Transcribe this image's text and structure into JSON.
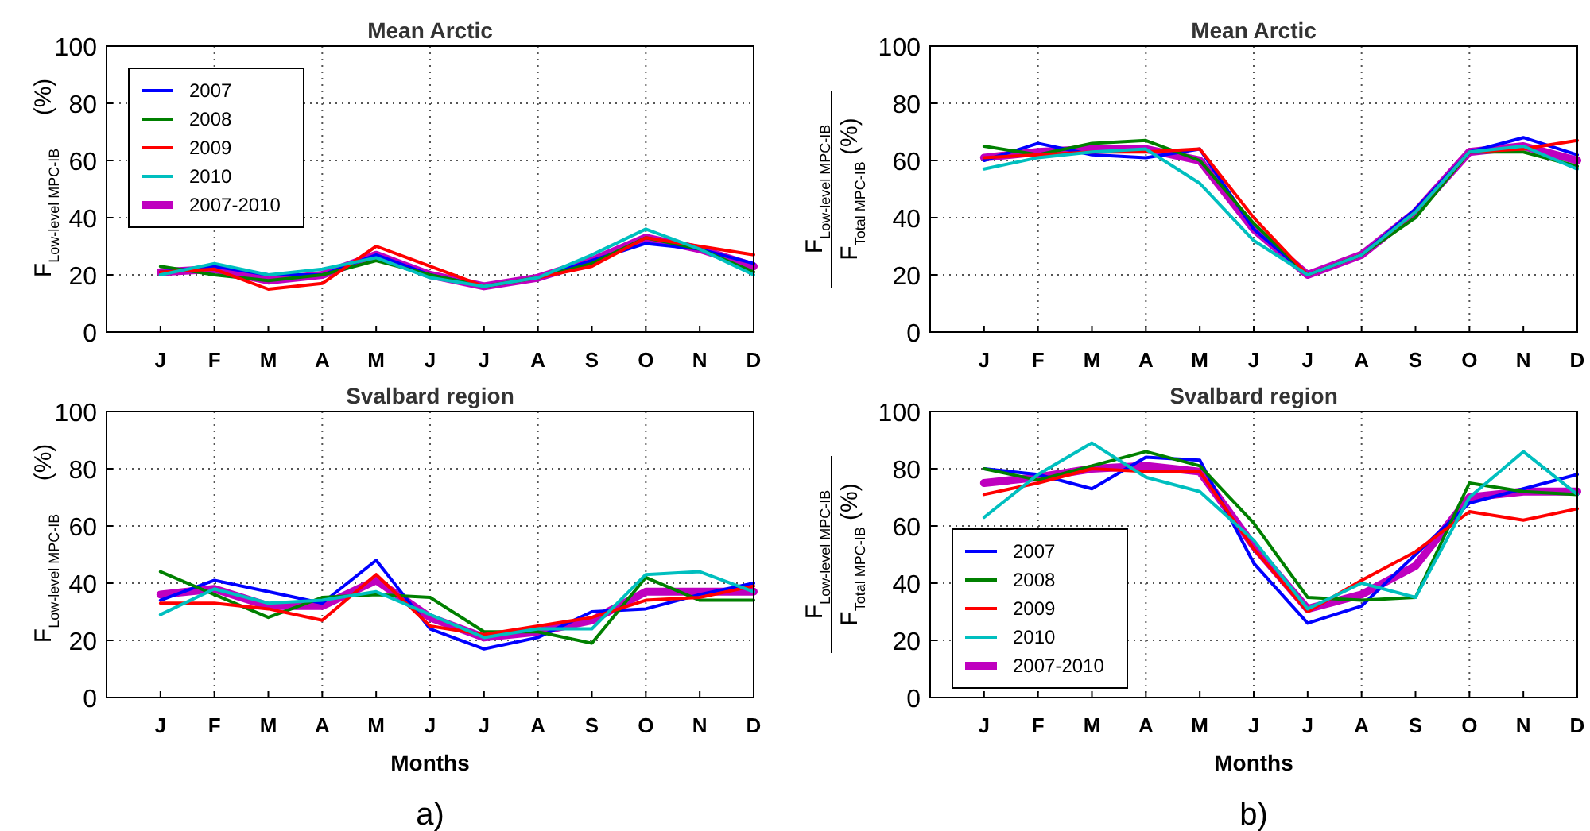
{
  "chart_data": [
    {
      "type": "line",
      "title": "Mean Arctic",
      "ylabel": "F$_{Low-level MPC-IB}$ (%)",
      "categories": [
        "J",
        "F",
        "M",
        "A",
        "M",
        "J",
        "J",
        "A",
        "S",
        "O",
        "N",
        "D"
      ],
      "ylim": [
        0,
        100
      ],
      "yticks": [
        0,
        20,
        40,
        60,
        80,
        100
      ],
      "grid": true,
      "legend": "top left",
      "line_style": "solid",
      "marker": "none",
      "series": [
        {
          "name": "2007",
          "color": "#0000ff",
          "values": [
            21,
            23,
            20,
            20,
            27,
            20,
            16,
            19,
            25,
            31,
            29,
            24
          ]
        },
        {
          "name": "2008",
          "color": "#008000",
          "values": [
            23,
            20,
            18,
            20,
            25,
            20,
            16,
            19,
            24,
            33,
            29,
            21
          ]
        },
        {
          "name": "2009",
          "color": "#ff0000",
          "values": [
            21,
            22,
            15,
            17,
            30,
            23,
            16,
            19,
            23,
            33,
            30,
            27
          ]
        },
        {
          "name": "2010",
          "color": "#00bfbf",
          "values": [
            20,
            24,
            20,
            22,
            26,
            19,
            16,
            19,
            27,
            36,
            29,
            20
          ]
        },
        {
          "name": "2007-2010",
          "color": "#bf00bf",
          "values": [
            21,
            22,
            18,
            20,
            27,
            20,
            16,
            19,
            25,
            33,
            29,
            23
          ]
        }
      ]
    },
    {
      "type": "line",
      "title": "Mean Arctic",
      "ylabel": "F$_{Low-level MPC-IB}$\nF$_{Total MPC-IB}$ (%)",
      "categories": [
        "J",
        "F",
        "M",
        "A",
        "M",
        "J",
        "J",
        "A",
        "S",
        "O",
        "N",
        "D"
      ],
      "ylim": [
        0,
        100
      ],
      "yticks": [
        0,
        20,
        40,
        60,
        80,
        100
      ],
      "grid": true,
      "legend": false,
      "line_style": "solid",
      "marker": "none",
      "series": [
        {
          "color": "#0000ff",
          "values": [
            60,
            66,
            62,
            61,
            64,
            36,
            20,
            27,
            43,
            63,
            68,
            62
          ]
        },
        {
          "color": "#008000",
          "values": [
            65,
            62,
            66,
            67,
            60,
            38,
            20,
            27,
            40,
            63,
            63,
            58
          ]
        },
        {
          "color": "#ff0000",
          "values": [
            61,
            62,
            63,
            63,
            64,
            40,
            20,
            27,
            42,
            63,
            64,
            67
          ]
        },
        {
          "color": "#00bfbf",
          "values": [
            57,
            61,
            63,
            64,
            52,
            32,
            20,
            27,
            42,
            63,
            65,
            57
          ]
        },
        {
          "color": "#bf00bf",
          "values": [
            61,
            63,
            64,
            64,
            60,
            36,
            20,
            27,
            42,
            63,
            65,
            60
          ]
        }
      ]
    },
    {
      "type": "line",
      "title": "Svalbard region",
      "xlabel": "Months",
      "ylabel": "F$_{Low-level MPC-IB}$ (%)",
      "annotations": [
        "a)"
      ],
      "categories": [
        "J",
        "F",
        "M",
        "A",
        "M",
        "J",
        "J",
        "A",
        "S",
        "O",
        "N",
        "D"
      ],
      "ylim": [
        0,
        100
      ],
      "yticks": [
        0,
        20,
        40,
        60,
        80,
        100
      ],
      "grid": true,
      "legend": false,
      "line_style": "solid",
      "marker": "none",
      "series": [
        {
          "color": "#0000ff",
          "values": [
            34,
            41,
            37,
            33,
            48,
            24,
            17,
            21,
            30,
            31,
            36,
            40
          ]
        },
        {
          "color": "#008000",
          "values": [
            44,
            36,
            28,
            35,
            36,
            35,
            23,
            23,
            19,
            42,
            34,
            34
          ]
        },
        {
          "color": "#ff0000",
          "values": [
            33,
            33,
            31,
            27,
            43,
            25,
            22,
            25,
            28,
            34,
            35,
            39
          ]
        },
        {
          "color": "#00bfbf",
          "values": [
            29,
            38,
            33,
            34,
            37,
            29,
            21,
            24,
            24,
            43,
            44,
            37
          ]
        },
        {
          "color": "#bf00bf",
          "values": [
            36,
            38,
            32,
            32,
            41,
            28,
            21,
            23,
            27,
            37,
            37,
            37
          ]
        }
      ]
    },
    {
      "type": "line",
      "title": "Svalbard region",
      "xlabel": "Months",
      "ylabel": "F$_{Low-level MPC-IB}$\nF$_{Total MPC-IB}$ (%)",
      "annotations": [
        "b)"
      ],
      "categories": [
        "J",
        "F",
        "M",
        "A",
        "M",
        "J",
        "J",
        "A",
        "S",
        "O",
        "N",
        "D"
      ],
      "ylim": [
        0,
        100
      ],
      "yticks": [
        0,
        20,
        40,
        60,
        80,
        100
      ],
      "grid": true,
      "legend": "bottom left",
      "line_style": "solid",
      "marker": "none",
      "series": [
        {
          "name": "2007",
          "color": "#0000ff",
          "values": [
            80,
            78,
            73,
            84,
            83,
            47,
            26,
            32,
            50,
            68,
            73,
            78
          ]
        },
        {
          "name": "2008",
          "color": "#008000",
          "values": [
            80,
            76,
            81,
            86,
            81,
            61,
            35,
            34,
            35,
            75,
            72,
            71
          ]
        },
        {
          "name": "2009",
          "color": "#ff0000",
          "values": [
            71,
            75,
            80,
            79,
            79,
            52,
            30,
            41,
            51,
            65,
            62,
            66
          ]
        },
        {
          "name": "2010",
          "color": "#00bfbf",
          "values": [
            63,
            78,
            89,
            77,
            72,
            55,
            31,
            40,
            35,
            70,
            86,
            71
          ]
        },
        {
          "name": "2007-2010",
          "color": "#bf00bf",
          "values": [
            75,
            77,
            80,
            81,
            79,
            53,
            31,
            36,
            46,
            70,
            72,
            72
          ]
        }
      ]
    }
  ]
}
